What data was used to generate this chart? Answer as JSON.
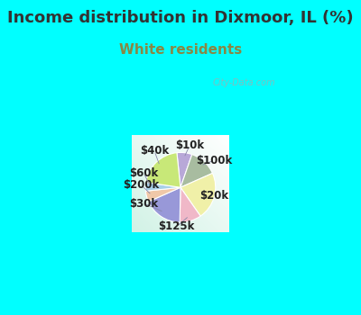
{
  "title": "Income distribution in Dixmoor, IL (%)",
  "subtitle": "White residents",
  "title_color": "#333333",
  "subtitle_color": "#888844",
  "background_color": "#00ffff",
  "slices": [
    {
      "label": "$10k",
      "value": 7,
      "color": "#b8a8d8"
    },
    {
      "label": "$100k",
      "value": 13,
      "color": "#a8bca0"
    },
    {
      "label": "$20k",
      "value": 22,
      "color": "#f0f0a8"
    },
    {
      "label": "$125k",
      "value": 10,
      "color": "#f0b8c8"
    },
    {
      "label": "$30k",
      "value": 18,
      "color": "#9898d8"
    },
    {
      "label": "$200k",
      "value": 5,
      "color": "#f0c8a8"
    },
    {
      "label": "$60k",
      "value": 4,
      "color": "#a8d0e8"
    },
    {
      "label": "$40k",
      "value": 21,
      "color": "#c8e878"
    }
  ],
  "watermark": "City-Data.com",
  "label_fontsize": 8.5,
  "title_fontsize": 13,
  "subtitle_fontsize": 11
}
